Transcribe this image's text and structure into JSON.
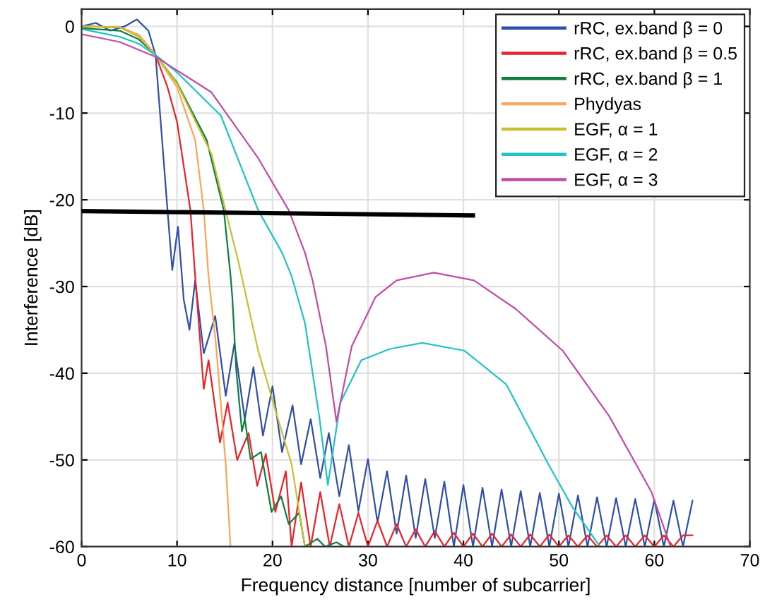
{
  "chart_data": {
    "type": "line",
    "xlabel": "Frequency distance [number of subcarrier]",
    "ylabel": "Interference [dB]",
    "xlim": [
      0,
      70
    ],
    "xticks": [
      0,
      10,
      20,
      30,
      40,
      50,
      60,
      70
    ],
    "ylim": [
      -60,
      2
    ],
    "yticks": [
      -60,
      -50,
      -40,
      -30,
      -20,
      -10,
      0
    ],
    "grid": true,
    "legend": "top right",
    "marker": "none",
    "line_style": "solid",
    "series": [
      {
        "name": "rRC, ex.band β = 0",
        "color": "#2f4fa8",
        "x": [
          0,
          1.5,
          3,
          4.5,
          5.8,
          7,
          7.75,
          9,
          9.5,
          10.1,
          10.7,
          11.3,
          11.9,
          12.8,
          14.0,
          15.1,
          16.0,
          17.1,
          18.0,
          19.0,
          20.0,
          21.0,
          22.1,
          23.0,
          24.0,
          25.0,
          25.9,
          27.0,
          28.0,
          29.0,
          30.0,
          31.0,
          32.0,
          33.0,
          34.0,
          35.0,
          36,
          37,
          38,
          39,
          40,
          41,
          42,
          43,
          44,
          45,
          46,
          47,
          48,
          49,
          50,
          51,
          52,
          53,
          54,
          55,
          56,
          57,
          58,
          59,
          60,
          61,
          62,
          63,
          64
        ],
        "values": [
          0,
          0.4,
          -0.5,
          0,
          0.8,
          -0.5,
          -3.3,
          -21.2,
          -28.1,
          -23.1,
          -31.5,
          -35,
          -29.3,
          -37.7,
          -33.4,
          -42.6,
          -36.6,
          -45.3,
          -39.3,
          -47.2,
          -41.5,
          -49.1,
          -43.7,
          -50.5,
          -45.3,
          -52.1,
          -46.9,
          -54.2,
          -48.3,
          -55.9,
          -49.9,
          -57.2,
          -51.3,
          -58.5,
          -51.8,
          -59,
          -52.2,
          -59,
          -52.5,
          -60,
          -52.9,
          -60,
          -53.2,
          -60,
          -53.4,
          -60,
          -53.6,
          -60,
          -53.8,
          -60,
          -53.9,
          -60,
          -54.1,
          -60,
          -54.3,
          -60,
          -54.4,
          -60,
          -54.5,
          -60,
          -54.6,
          -60,
          -54.7,
          -60,
          -54.7
        ]
      },
      {
        "name": "rRC, ex.band β = 0.5",
        "color": "#e8232a",
        "x": [
          0,
          4,
          6,
          7.75,
          9,
          10,
          11.4,
          11.9,
          12.8,
          13.3,
          14.5,
          15.3,
          16.3,
          17.5,
          18.4,
          19.3,
          20.3,
          21.4,
          22,
          23,
          24,
          25,
          26,
          27,
          28,
          29,
          30,
          31,
          32,
          33,
          34,
          35,
          36,
          37,
          38,
          39,
          40,
          41,
          42,
          43,
          44,
          45,
          46,
          47,
          48,
          49,
          50,
          51,
          52,
          53,
          54,
          55,
          56,
          57,
          58,
          59,
          60,
          61,
          62,
          63,
          64
        ],
        "values": [
          0,
          -0.1,
          -1,
          -3.3,
          -7,
          -11,
          -21.2,
          -28.8,
          -41.8,
          -38.5,
          -48,
          -43.4,
          -50,
          -46.9,
          -53,
          -49.3,
          -56,
          -51.3,
          -60,
          -52.6,
          -60,
          -53.7,
          -60,
          -55.1,
          -60,
          -56.1,
          -60,
          -57,
          -60,
          -57.4,
          -60,
          -58,
          -60,
          -58.2,
          -60,
          -58.4,
          -60,
          -58.5,
          -60,
          -58.5,
          -60,
          -58.6,
          -60,
          -58.6,
          -60,
          -58.6,
          -60,
          -58.7,
          -60,
          -58.7,
          -60,
          -58.7,
          -60,
          -58.7,
          -60,
          -58.7,
          -60,
          -58.7,
          -60,
          -58.7,
          -58.7
        ]
      },
      {
        "name": "rRC, ex.band β = 1",
        "color": "#0d7f3f",
        "x": [
          0,
          4,
          6,
          7.75,
          10,
          13.1,
          14.9,
          15.6,
          15.8,
          16.2,
          16.8,
          17.1,
          17.7,
          18.8,
          19.9,
          20.9,
          21.7,
          22.8,
          23.4,
          24.7,
          25.5,
          26.7,
          27.5
        ],
        "values": [
          -0.2,
          -0.5,
          -1.5,
          -3.3,
          -6.5,
          -13.1,
          -21.2,
          -28.7,
          -31.4,
          -39.6,
          -46.7,
          -45.3,
          -49.9,
          -49.1,
          -56,
          -54.2,
          -57.4,
          -56.1,
          -60,
          -59.1,
          -60,
          -59.5,
          -60
        ]
      },
      {
        "name": "Phydyas",
        "color": "#f9a65a",
        "x": [
          0,
          4,
          6,
          7.75,
          10,
          11.9,
          12.8,
          13.3,
          14.1,
          15.1,
          15.6
        ],
        "values": [
          0,
          -0.1,
          -1,
          -3.3,
          -7,
          -13.1,
          -21.2,
          -28.8,
          -36.9,
          -50.5,
          -60
        ]
      },
      {
        "name": "EGF, α = 1",
        "color": "#c8c030",
        "x": [
          0,
          4,
          6,
          7.75,
          10,
          13.6,
          15.6,
          16.4,
          18.5,
          20.5,
          22,
          23.4
        ],
        "values": [
          0,
          -0.1,
          -1.2,
          -3.3,
          -6.6,
          -14.7,
          -23.5,
          -27,
          -37.4,
          -45,
          -50.5,
          -60
        ]
      },
      {
        "name": "EGF, α = 2",
        "color": "#20c4c8",
        "x": [
          0,
          4,
          6,
          7.75,
          10,
          14.6,
          18.5,
          21,
          22,
          23.4,
          24.9,
          25.8,
          27.1,
          29.3,
          32.3,
          35.7,
          40.1,
          44.5,
          48.9,
          51.4,
          54.3
        ],
        "values": [
          -0.3,
          -1.2,
          -2,
          -3.3,
          -5.3,
          -10.3,
          -21.2,
          -26.1,
          -28.8,
          -34.2,
          -45,
          -52.9,
          -43.4,
          -38.5,
          -37.2,
          -36.5,
          -37.4,
          -41.3,
          -50.5,
          -55.4,
          -60
        ]
      },
      {
        "name": "EGF, α = 3",
        "color": "#c04ca8",
        "x": [
          0,
          4,
          7.75,
          13.6,
          18.5,
          21.7,
          23.4,
          24.2,
          25.6,
          26.7,
          28.3,
          30.8,
          33,
          36.9,
          41.1,
          45.5,
          50.4,
          55.3,
          59.7,
          61.7
        ],
        "values": [
          -0.9,
          -1.8,
          -3.5,
          -7.6,
          -15.2,
          -21.2,
          -26.1,
          -29.3,
          -36.9,
          -45.6,
          -36.9,
          -31.2,
          -29.3,
          -28.4,
          -29.3,
          -32.6,
          -37.4,
          -45,
          -53.7,
          -60
        ]
      },
      {
        "color": "#000000",
        "x": [
          0,
          41
        ],
        "values": [
          -21.3,
          -21.8
        ]
      }
    ]
  }
}
